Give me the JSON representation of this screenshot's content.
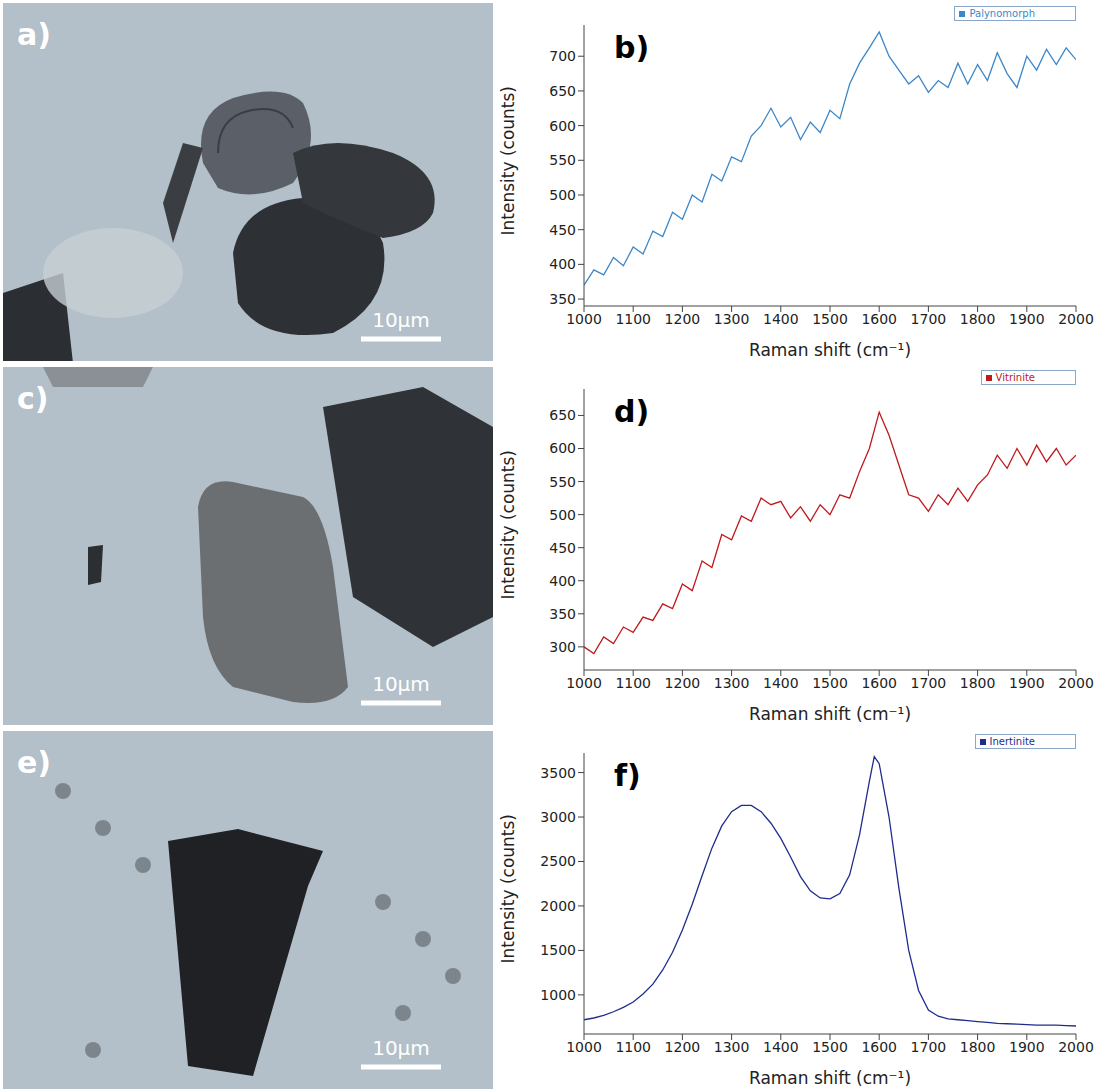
{
  "images": [
    {
      "label": "a)",
      "scale_bar": "10μm"
    },
    {
      "label": "c)",
      "scale_bar": "10μm"
    },
    {
      "label": "e)",
      "scale_bar": "10μm"
    }
  ],
  "chart_data": [
    {
      "type": "line",
      "title": "b)",
      "x_label": "Raman shift (cm⁻¹)",
      "y_label": "Intensity (counts)",
      "xlim": [
        1000,
        2000
      ],
      "xticks": [
        1000,
        1100,
        1200,
        1300,
        1400,
        1500,
        1600,
        1700,
        1800,
        1900,
        2000
      ],
      "ylim": [
        340,
        745
      ],
      "yticks": [
        350,
        400,
        450,
        500,
        550,
        600,
        650,
        700
      ],
      "grid": false,
      "legend": "upper right",
      "x": [
        1000,
        1020,
        1040,
        1060,
        1080,
        1100,
        1120,
        1140,
        1160,
        1180,
        1200,
        1220,
        1240,
        1260,
        1280,
        1300,
        1320,
        1340,
        1360,
        1380,
        1400,
        1420,
        1440,
        1460,
        1480,
        1500,
        1520,
        1540,
        1560,
        1580,
        1600,
        1620,
        1640,
        1660,
        1680,
        1700,
        1720,
        1740,
        1760,
        1780,
        1800,
        1820,
        1840,
        1860,
        1880,
        1900,
        1920,
        1940,
        1960,
        1980,
        2000
      ],
      "series": [
        {
          "name": "Palynomorph",
          "color": "#3c87c8",
          "values": [
            370,
            392,
            385,
            410,
            398,
            425,
            415,
            448,
            440,
            475,
            465,
            500,
            490,
            530,
            520,
            555,
            548,
            585,
            600,
            625,
            598,
            612,
            580,
            605,
            590,
            622,
            610,
            660,
            690,
            712,
            735,
            700,
            680,
            660,
            672,
            648,
            665,
            655,
            690,
            660,
            688,
            665,
            705,
            675,
            655,
            700,
            680,
            710,
            688,
            712,
            695
          ]
        }
      ]
    },
    {
      "type": "line",
      "title": "d)",
      "x_label": "Raman shift (cm⁻¹)",
      "y_label": "Intensity (counts)",
      "xlim": [
        1000,
        2000
      ],
      "xticks": [
        1000,
        1100,
        1200,
        1300,
        1400,
        1500,
        1600,
        1700,
        1800,
        1900,
        2000
      ],
      "ylim": [
        265,
        690
      ],
      "yticks": [
        300,
        350,
        400,
        450,
        500,
        550,
        600,
        650
      ],
      "grid": false,
      "legend": "upper right",
      "x": [
        1000,
        1020,
        1040,
        1060,
        1080,
        1100,
        1120,
        1140,
        1160,
        1180,
        1200,
        1220,
        1240,
        1260,
        1280,
        1300,
        1320,
        1340,
        1360,
        1380,
        1400,
        1420,
        1440,
        1460,
        1480,
        1500,
        1520,
        1540,
        1560,
        1580,
        1600,
        1620,
        1640,
        1660,
        1680,
        1700,
        1720,
        1740,
        1760,
        1780,
        1800,
        1820,
        1840,
        1860,
        1880,
        1900,
        1920,
        1940,
        1960,
        1980,
        2000
      ],
      "series": [
        {
          "name": "Vitrinite",
          "color": "#c0191c",
          "values": [
            300,
            290,
            315,
            305,
            330,
            322,
            345,
            340,
            365,
            358,
            395,
            385,
            430,
            420,
            470,
            462,
            498,
            490,
            525,
            515,
            520,
            495,
            512,
            490,
            515,
            500,
            530,
            525,
            565,
            600,
            655,
            620,
            575,
            530,
            525,
            505,
            530,
            515,
            540,
            520,
            545,
            560,
            590,
            570,
            600,
            575,
            605,
            580,
            600,
            575,
            590
          ]
        }
      ]
    },
    {
      "type": "line",
      "title": "f)",
      "x_label": "Raman shift (cm⁻¹)",
      "y_label": "Intensity (counts)",
      "xlim": [
        1000,
        2000
      ],
      "xticks": [
        1000,
        1100,
        1200,
        1300,
        1400,
        1500,
        1600,
        1700,
        1800,
        1900,
        2000
      ],
      "ylim": [
        560,
        3720
      ],
      "yticks": [
        1000,
        1500,
        2000,
        2500,
        3000,
        3500
      ],
      "grid": false,
      "legend": "upper right",
      "x": [
        1000,
        1020,
        1040,
        1060,
        1080,
        1100,
        1120,
        1140,
        1160,
        1180,
        1200,
        1220,
        1240,
        1260,
        1280,
        1300,
        1320,
        1340,
        1360,
        1380,
        1400,
        1420,
        1440,
        1460,
        1480,
        1500,
        1520,
        1540,
        1560,
        1580,
        1590,
        1600,
        1620,
        1640,
        1660,
        1680,
        1700,
        1720,
        1740,
        1760,
        1780,
        1800,
        1820,
        1840,
        1860,
        1880,
        1900,
        1920,
        1940,
        1960,
        1980,
        2000
      ],
      "series": [
        {
          "name": "Inertinite",
          "color": "#1e2d8c",
          "values": [
            720,
            740,
            770,
            810,
            860,
            920,
            1010,
            1120,
            1280,
            1480,
            1730,
            2020,
            2340,
            2650,
            2900,
            3060,
            3130,
            3130,
            3060,
            2930,
            2760,
            2550,
            2330,
            2170,
            2090,
            2080,
            2140,
            2350,
            2800,
            3400,
            3680,
            3600,
            3000,
            2200,
            1500,
            1050,
            830,
            760,
            730,
            720,
            710,
            700,
            690,
            680,
            675,
            670,
            665,
            660,
            660,
            660,
            655,
            650
          ]
        }
      ]
    }
  ]
}
